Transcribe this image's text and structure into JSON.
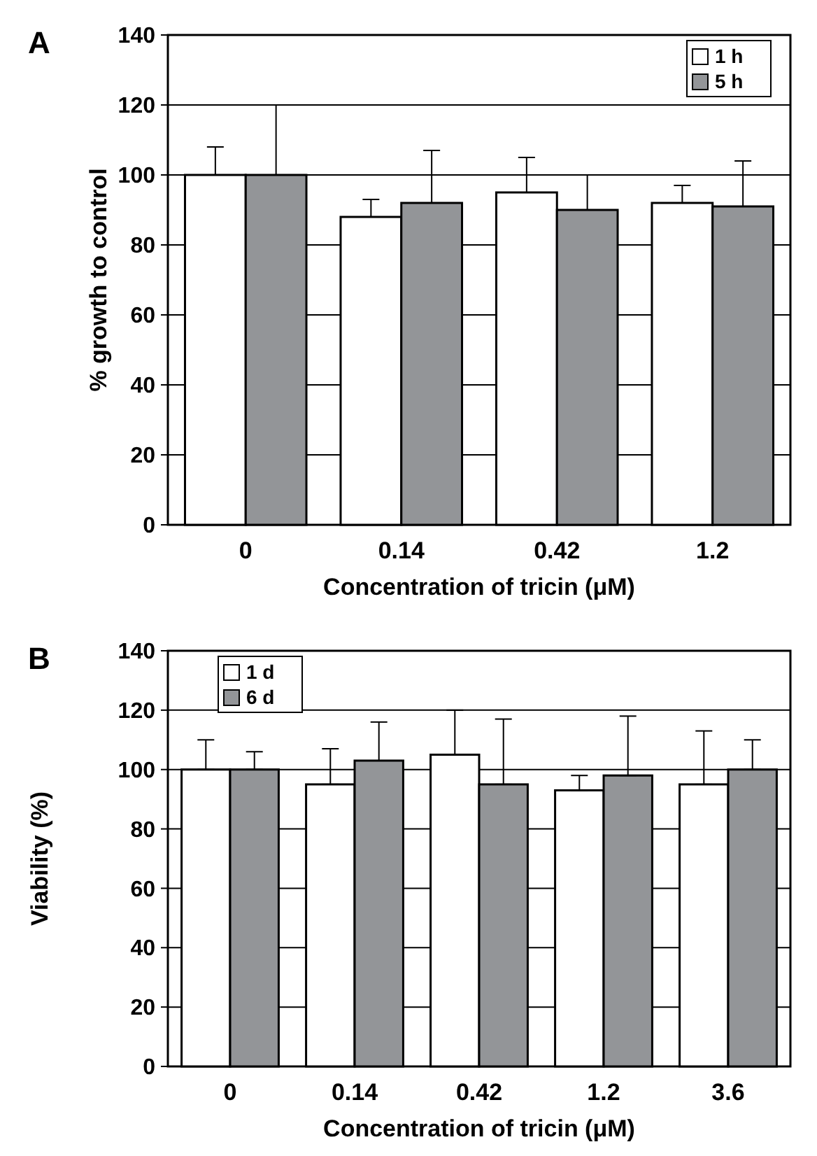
{
  "chart_data": [
    {
      "type": "bar",
      "title": "A",
      "xlabel": "Concentration of tricin (μM)",
      "ylabel": "% growth to control",
      "categories": [
        "0",
        "0.14",
        "0.42",
        "1.2"
      ],
      "ylim": [
        0,
        140
      ],
      "yticks": [
        0,
        20,
        40,
        60,
        80,
        100,
        120,
        140
      ],
      "grid": "y",
      "legend": "top right",
      "series": [
        {
          "name": "1 h",
          "color": "#ffffff",
          "values": [
            100,
            88,
            95,
            92
          ],
          "errors": [
            [
              100,
              108
            ],
            [
              88,
              93
            ],
            [
              95,
              105
            ],
            [
              92,
              97
            ]
          ]
        },
        {
          "name": "5 h",
          "color": "#939598",
          "values": [
            100,
            92,
            90,
            91
          ],
          "errors": [
            [
              100,
              120
            ],
            [
              92,
              107
            ],
            [
              90,
              100
            ],
            [
              91,
              104
            ]
          ]
        }
      ]
    },
    {
      "type": "bar",
      "title": "B",
      "xlabel": "Concentration of tricin (μM)",
      "ylabel": "Viability (%)",
      "categories": [
        "0",
        "0.14",
        "0.42",
        "1.2",
        "3.6"
      ],
      "ylim": [
        0,
        140
      ],
      "yticks": [
        0,
        20,
        40,
        60,
        80,
        100,
        120,
        140
      ],
      "grid": "y",
      "legend": "top left",
      "series": [
        {
          "name": "1 d",
          "color": "#ffffff",
          "values": [
            100,
            95,
            105,
            93,
            95
          ],
          "errors": [
            [
              100,
              110
            ],
            [
              95,
              107
            ],
            [
              105,
              120
            ],
            [
              93,
              98
            ],
            [
              95,
              113
            ]
          ]
        },
        {
          "name": "6 d",
          "color": "#939598",
          "values": [
            100,
            103,
            95,
            98,
            100
          ],
          "errors": [
            [
              100,
              106
            ],
            [
              103,
              116
            ],
            [
              95,
              117
            ],
            [
              98,
              118
            ],
            [
              100,
              110
            ]
          ]
        }
      ]
    }
  ]
}
